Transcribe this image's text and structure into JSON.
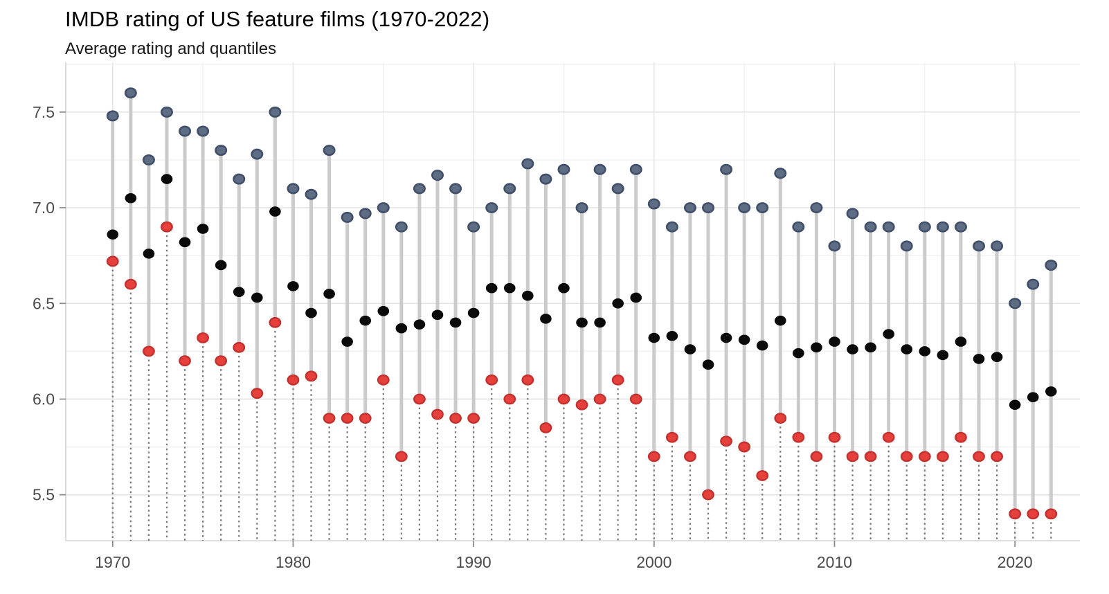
{
  "title": "IMDB rating of US feature films (1970-2022)",
  "subtitle": "Average rating and quantiles",
  "chart_data": {
    "type": "scatter",
    "variant": "dumbbell-lollipop",
    "x": [
      1970,
      1971,
      1972,
      1973,
      1974,
      1975,
      1976,
      1977,
      1978,
      1979,
      1980,
      1981,
      1982,
      1983,
      1984,
      1985,
      1986,
      1987,
      1988,
      1989,
      1990,
      1991,
      1992,
      1993,
      1994,
      1995,
      1996,
      1997,
      1998,
      1999,
      2000,
      2001,
      2002,
      2003,
      2004,
      2005,
      2006,
      2007,
      2008,
      2009,
      2010,
      2011,
      2012,
      2013,
      2014,
      2015,
      2016,
      2017,
      2018,
      2019,
      2020,
      2021,
      2022
    ],
    "series": [
      {
        "name": "upper_quantile",
        "values": [
          7.48,
          7.6,
          7.25,
          7.5,
          7.4,
          7.4,
          7.3,
          7.15,
          7.28,
          7.5,
          7.1,
          7.07,
          7.3,
          6.95,
          6.97,
          7.0,
          6.9,
          7.1,
          7.17,
          7.1,
          6.9,
          7.0,
          7.1,
          7.23,
          7.15,
          7.2,
          7.0,
          7.2,
          7.1,
          7.2,
          7.02,
          6.9,
          7.0,
          7.0,
          7.2,
          7.0,
          7.0,
          7.18,
          6.9,
          7.0,
          6.8,
          6.97,
          6.9,
          6.9,
          6.8,
          6.9,
          6.9,
          6.9,
          6.8,
          6.8,
          6.5,
          6.6,
          6.7
        ]
      },
      {
        "name": "average",
        "values": [
          6.86,
          7.05,
          6.76,
          7.15,
          6.82,
          6.89,
          6.7,
          6.56,
          6.53,
          6.98,
          6.59,
          6.45,
          6.55,
          6.3,
          6.41,
          6.46,
          6.37,
          6.39,
          6.44,
          6.4,
          6.45,
          6.58,
          6.58,
          6.54,
          6.42,
          6.58,
          6.4,
          6.4,
          6.5,
          6.53,
          6.32,
          6.33,
          6.26,
          6.18,
          6.32,
          6.31,
          6.28,
          6.41,
          6.24,
          6.27,
          6.3,
          6.26,
          6.27,
          6.34,
          6.26,
          6.25,
          6.23,
          6.3,
          6.21,
          6.22,
          5.97,
          6.01,
          6.04
        ]
      },
      {
        "name": "lower_quantile",
        "values": [
          6.72,
          6.6,
          6.25,
          6.9,
          6.2,
          6.32,
          6.2,
          6.27,
          6.03,
          6.4,
          6.1,
          6.12,
          5.9,
          5.9,
          5.9,
          6.1,
          5.7,
          6.0,
          5.92,
          5.9,
          5.9,
          6.1,
          6.0,
          6.1,
          5.85,
          6.0,
          5.97,
          6.0,
          6.1,
          6.0,
          5.7,
          5.8,
          5.7,
          5.5,
          5.78,
          5.75,
          5.6,
          5.9,
          5.8,
          5.7,
          5.8,
          5.7,
          5.7,
          5.8,
          5.7,
          5.7,
          5.7,
          5.8,
          5.7,
          5.7,
          5.4,
          5.4,
          5.4
        ]
      }
    ],
    "xlabel": "",
    "ylabel": "",
    "x_ticks": [
      1970,
      1980,
      1990,
      2000,
      2010,
      2020
    ],
    "y_ticks": [
      5.5,
      6.0,
      6.5,
      7.0,
      7.5
    ],
    "y_minor": [
      5.75,
      6.25,
      6.75,
      7.25,
      7.75
    ],
    "x_grid_years": [
      1970,
      1975,
      1980,
      1985,
      1990,
      1995,
      2000,
      2005,
      2010,
      2015,
      2020
    ],
    "xlim": [
      1967.4,
      2023.6
    ],
    "ylim": [
      5.26,
      7.76
    ],
    "grid": true,
    "legend": "none",
    "colors": {
      "upper_fill": "#5E6D83",
      "upper_stroke": "#41506A",
      "mean_fill": "#0A0A0A",
      "lower_fill": "#E6403D",
      "lower_stroke": "#C2312E",
      "segment": "#CBCBCB",
      "stem": "#787878",
      "grid_major": "#E3E3E3",
      "grid_minor": "#F0F0F0",
      "axis_line": "#D4D4D4",
      "tick_mark": "#8C8C8C",
      "tick_label": "#4B4B4B"
    }
  }
}
